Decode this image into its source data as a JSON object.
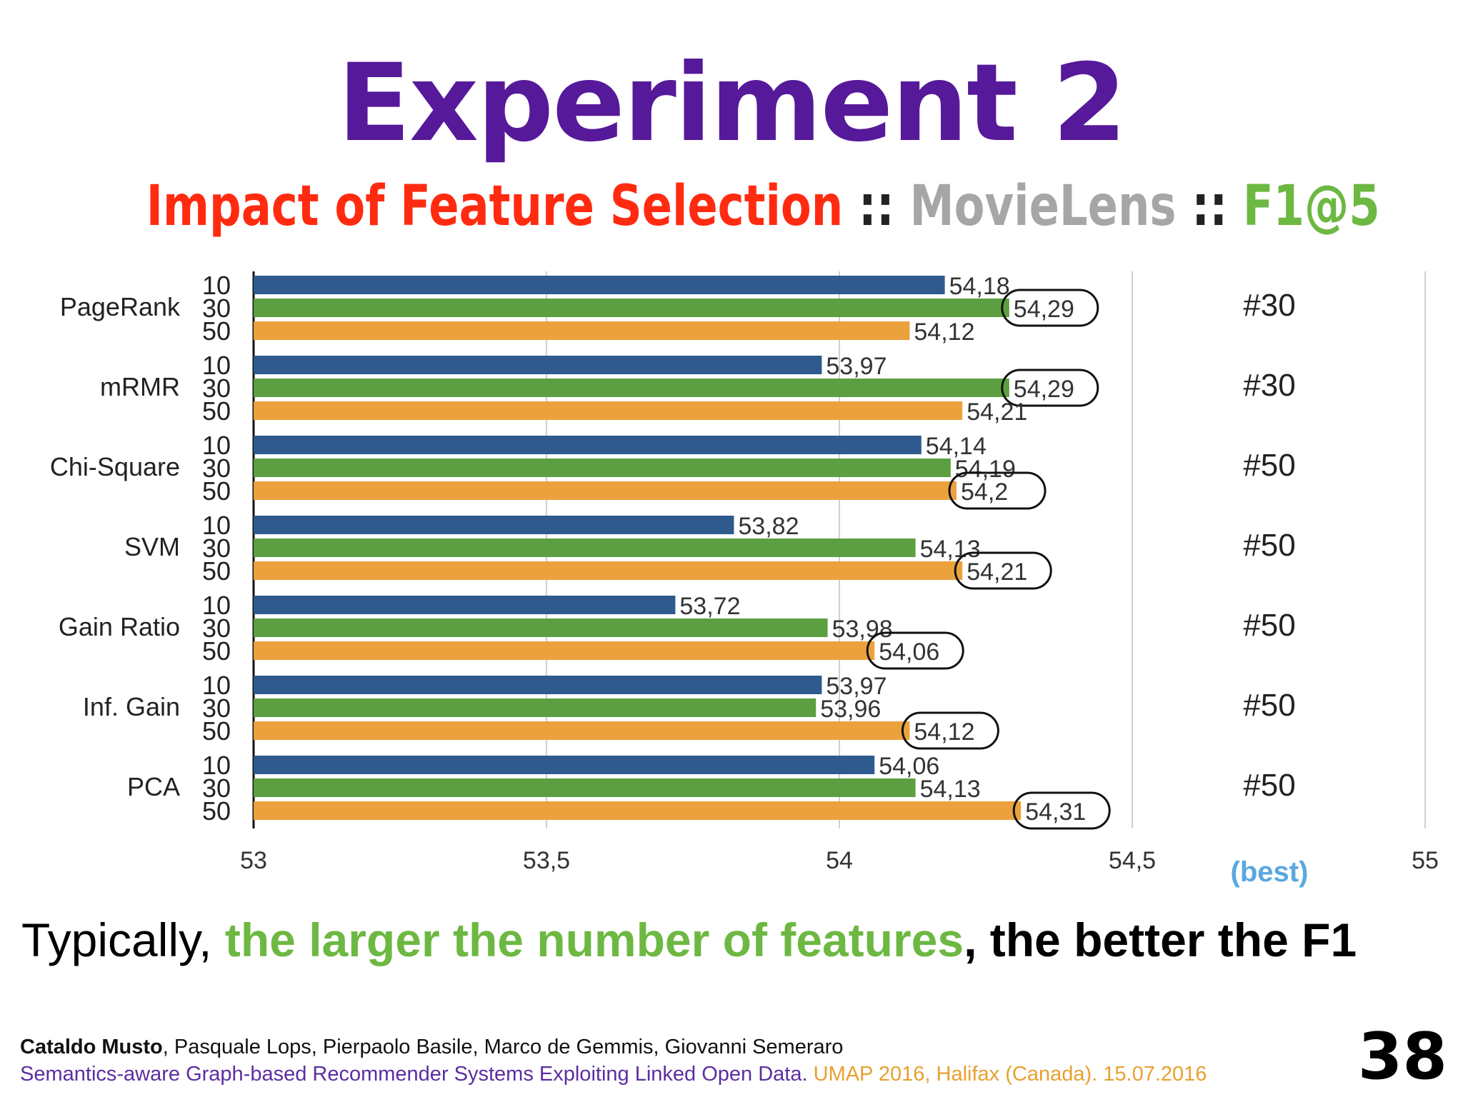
{
  "slide": {
    "title": "Experiment 2",
    "subtitle": {
      "part1": "Impact of Feature Selection",
      "sep1": " :: ",
      "part2": "MovieLens",
      "sep2": " :: ",
      "part3": "F1@5",
      "colors": {
        "part1": "#ff2b10",
        "sep": "#222222",
        "part2": "#a6a6a6",
        "part3": "#6db842"
      }
    },
    "tagline": {
      "prefix": "Typically, ",
      "highlight": "the larger the number of features",
      "suffix": ", the better the F1"
    },
    "footer": {
      "lead_author": "Cataldo Musto",
      "other_authors": ", Pasquale Lops, Pierpaolo Basile, Marco de Gemmis, Giovanni Semeraro",
      "paper": "Semantics-aware Graph-based Recommender Systems Exploiting Linked Open Data.",
      "venue": " UMAP 2016, Halifax (Canada). 15.07.2016",
      "page": "38"
    }
  },
  "chart_data": {
    "type": "bar",
    "orientation": "horizontal",
    "title": "",
    "xlabel": "",
    "ylabel": "",
    "xlim": [
      53,
      55
    ],
    "x_ticks": [
      "53",
      "53,5",
      "54",
      "54,5",
      "55"
    ],
    "x_tick_values": [
      53,
      53.5,
      54,
      54.5,
      55
    ],
    "grid": "vertical",
    "series_colors": {
      "10": "#2e5a8e",
      "30": "#5b9f41",
      "50": "#eba23d"
    },
    "groups": [
      {
        "name": "PageRank",
        "bars": [
          {
            "k": "10",
            "value": 54.18,
            "label": "54,18"
          },
          {
            "k": "30",
            "value": 54.29,
            "label": "54,29"
          },
          {
            "k": "50",
            "value": 54.12,
            "label": "54,12"
          }
        ],
        "best_k": "30",
        "best_label": "#30"
      },
      {
        "name": "mRMR",
        "bars": [
          {
            "k": "10",
            "value": 53.97,
            "label": "53,97"
          },
          {
            "k": "30",
            "value": 54.29,
            "label": "54,29"
          },
          {
            "k": "50",
            "value": 54.21,
            "label": "54,21"
          }
        ],
        "best_k": "30",
        "best_label": "#30"
      },
      {
        "name": "Chi-Square",
        "bars": [
          {
            "k": "10",
            "value": 54.14,
            "label": "54,14"
          },
          {
            "k": "30",
            "value": 54.19,
            "label": "54,19"
          },
          {
            "k": "50",
            "value": 54.2,
            "label": "54,2"
          }
        ],
        "best_k": "50",
        "best_label": "#50"
      },
      {
        "name": "SVM",
        "bars": [
          {
            "k": "10",
            "value": 53.82,
            "label": "53,82"
          },
          {
            "k": "30",
            "value": 54.13,
            "label": "54,13"
          },
          {
            "k": "50",
            "value": 54.21,
            "label": "54,21"
          }
        ],
        "best_k": "50",
        "best_label": "#50"
      },
      {
        "name": "Gain Ratio",
        "bars": [
          {
            "k": "10",
            "value": 53.72,
            "label": "53,72"
          },
          {
            "k": "30",
            "value": 53.98,
            "label": "53,98"
          },
          {
            "k": "50",
            "value": 54.06,
            "label": "54,06"
          }
        ],
        "best_k": "50",
        "best_label": "#50"
      },
      {
        "name": "Inf. Gain",
        "bars": [
          {
            "k": "10",
            "value": 53.97,
            "label": "53,97"
          },
          {
            "k": "30",
            "value": 53.96,
            "label": "53,96"
          },
          {
            "k": "50",
            "value": 54.12,
            "label": "54,12"
          }
        ],
        "best_k": "50",
        "best_label": "#50"
      },
      {
        "name": "PCA",
        "bars": [
          {
            "k": "10",
            "value": 54.06,
            "label": "54,06"
          },
          {
            "k": "30",
            "value": 54.13,
            "label": "54,13"
          },
          {
            "k": "50",
            "value": 54.31,
            "label": "54,31"
          }
        ],
        "best_k": "50",
        "best_label": "#50"
      }
    ],
    "best_column_label": "(best)",
    "best_column_label_color": "#5aa8e0",
    "annotations": "black hand-drawn ellipse around the best bar label in each group"
  }
}
